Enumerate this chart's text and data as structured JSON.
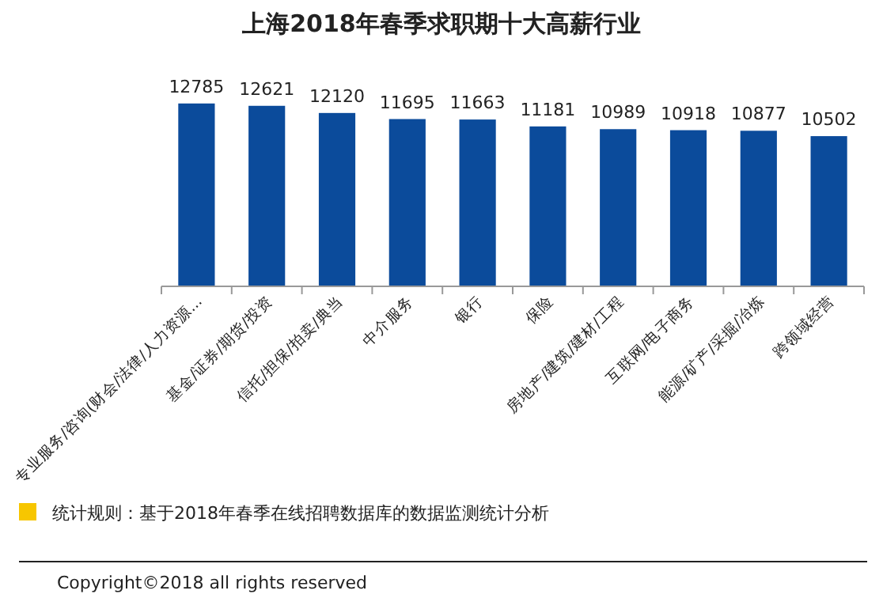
{
  "chart_data": {
    "type": "bar",
    "title": "上海2018年春季求职期十大高薪行业",
    "categories": [
      "专业服务/咨询(财会/法律/人力资源...",
      "基金/证券/期货/投资",
      "信托/担保/拍卖/典当",
      "中介服务",
      "银行",
      "保险",
      "房地产/建筑/建材/工程",
      "互联网/电子商务",
      "能源/矿产/采掘/冶炼",
      "跨领域经营"
    ],
    "values": [
      12785,
      12621,
      12120,
      11695,
      11663,
      11181,
      10989,
      10918,
      10877,
      10502
    ],
    "color": "#0b4b9b",
    "data_labels": true,
    "annotations": [
      "统计规则：基于2018年春季在线招聘数据库的数据监测统计分析",
      "Copyright©2018 all rights reserved"
    ]
  }
}
